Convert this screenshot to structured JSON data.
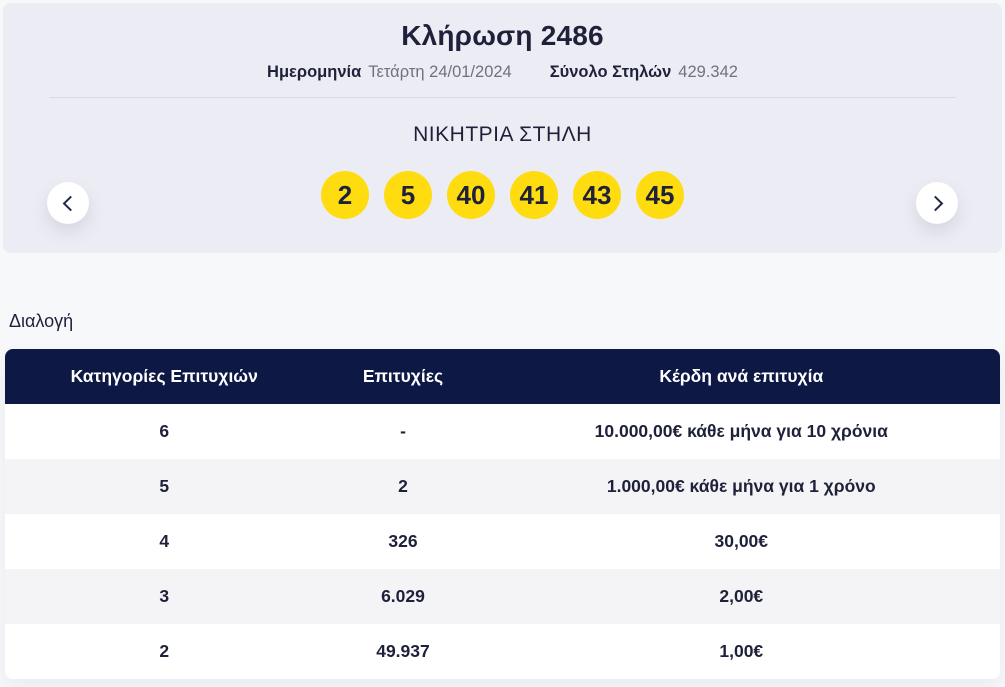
{
  "draw": {
    "title": "Κλήρωση 2486",
    "date_label": "Ημερομηνία",
    "date_value": "Τετάρτη 24/01/2024",
    "columns_label": "Σύνολο Στηλών",
    "columns_value": "429.342",
    "winning_title": "ΝΙΚΗΤΡΙΑ ΣΤΗΛΗ",
    "numbers": [
      "2",
      "5",
      "40",
      "41",
      "43",
      "45"
    ]
  },
  "nav": {
    "prev_icon": "chevron-left",
    "next_icon": "chevron-right"
  },
  "results": {
    "section_label": "Διαλογή",
    "table": {
      "headers": [
        "Κατηγορίες Επιτυχιών",
        "Επιτυχίες",
        "Κέρδη ανά επιτυχία"
      ],
      "rows": [
        [
          "6",
          "-",
          "10.000,00€ κάθε μήνα για 10 χρόνια"
        ],
        [
          "5",
          "2",
          "1.000,00€ κάθε μήνα για 1 χρόνο"
        ],
        [
          "4",
          "326",
          "30,00€"
        ],
        [
          "3",
          "6.029",
          "2,00€"
        ],
        [
          "2",
          "49.937",
          "1,00€"
        ]
      ]
    }
  },
  "colors": {
    "brand_navy": "#0d1845",
    "ball_yellow": "#ffdc0f",
    "card_background": "#ecedf4",
    "page_background": "#f7f8fa",
    "text_dark": "#1e2139",
    "text_gray": "#6e7280"
  }
}
